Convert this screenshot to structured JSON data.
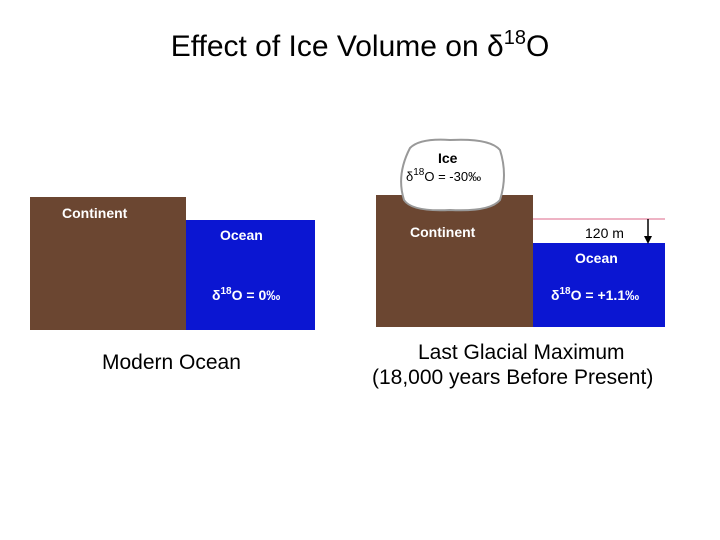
{
  "title": {
    "text": "Effect of Ice Volume on ",
    "symbol": "δ",
    "superscript": "18",
    "end": "O"
  },
  "modern": {
    "continent": "Continent",
    "ocean": "Ocean",
    "ocean_isotope": {
      "symbol": "δ",
      "superscript": "18",
      "rest": "O = 0‰"
    },
    "caption": "Modern Ocean"
  },
  "glacial": {
    "ice": "Ice",
    "ice_isotope": {
      "symbol": "δ",
      "superscript": "18",
      "rest": "O = -30‰"
    },
    "continent": "Continent",
    "sea_level_drop": "120 m",
    "ocean": "Ocean",
    "ocean_isotope": {
      "symbol": "δ",
      "superscript": "18",
      "rest": "O = +1.1‰"
    },
    "caption_line1": "Last Glacial Maximum",
    "caption_line2": "(18,000 years Before Present)"
  }
}
